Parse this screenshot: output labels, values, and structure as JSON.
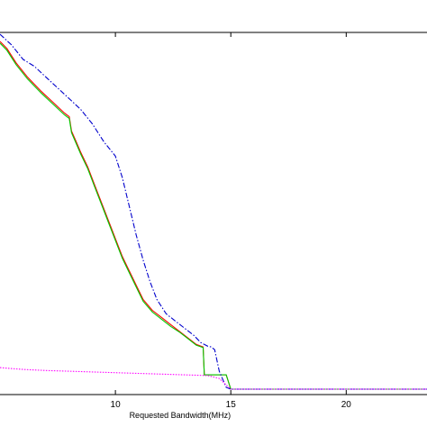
{
  "chart_data": {
    "type": "line",
    "title": "",
    "xlabel": "Requested Bandwidth(MHz)",
    "ylabel": "",
    "xlim": [
      5,
      23.5
    ],
    "ylim": [
      0,
      1
    ],
    "xticks": [
      10,
      15,
      20
    ],
    "xtick_labels": [
      "10",
      "15",
      "20"
    ],
    "grid": false,
    "legend": "none",
    "series": [
      {
        "color": "#ff0000",
        "style": "solid",
        "x": [
          5.0,
          5.3,
          5.7,
          6.2,
          6.8,
          7.3,
          7.8,
          8.0,
          8.1,
          8.3,
          8.5,
          8.8,
          9.1,
          9.4,
          9.7,
          10.0,
          10.3,
          10.6,
          10.9,
          11.2,
          11.6,
          12.0,
          12.4,
          12.8,
          13.2,
          13.5,
          13.8,
          13.85,
          14.0,
          14.2,
          14.4,
          14.6,
          14.8,
          15.0,
          16.0,
          18.0,
          20.0,
          22.0,
          23.5
        ],
        "y": [
          0.98,
          0.96,
          0.92,
          0.88,
          0.84,
          0.81,
          0.78,
          0.77,
          0.73,
          0.7,
          0.67,
          0.63,
          0.58,
          0.53,
          0.48,
          0.43,
          0.38,
          0.34,
          0.3,
          0.26,
          0.23,
          0.21,
          0.19,
          0.17,
          0.15,
          0.135,
          0.128,
          0.05,
          0.05,
          0.05,
          0.05,
          0.05,
          0.05,
          0.01,
          0.01,
          0.01,
          0.01,
          0.01,
          0.01
        ]
      },
      {
        "color": "#00cc00",
        "style": "solid",
        "x": [
          5.0,
          5.3,
          5.7,
          6.2,
          6.8,
          7.3,
          7.8,
          8.0,
          8.1,
          8.3,
          8.5,
          8.8,
          9.1,
          9.4,
          9.7,
          10.0,
          10.3,
          10.6,
          10.9,
          11.2,
          11.6,
          12.0,
          12.4,
          12.8,
          13.2,
          13.5,
          13.8,
          13.85,
          14.0,
          14.2,
          14.4,
          14.6,
          14.8,
          15.0,
          16.0,
          18.0,
          20.0,
          22.0,
          23.5
        ],
        "y": [
          0.975,
          0.955,
          0.915,
          0.875,
          0.835,
          0.805,
          0.775,
          0.765,
          0.725,
          0.695,
          0.665,
          0.625,
          0.575,
          0.525,
          0.475,
          0.425,
          0.375,
          0.335,
          0.295,
          0.255,
          0.225,
          0.205,
          0.185,
          0.168,
          0.148,
          0.133,
          0.126,
          0.05,
          0.05,
          0.05,
          0.05,
          0.05,
          0.05,
          0.01,
          0.01,
          0.01,
          0.01,
          0.01,
          0.01
        ]
      },
      {
        "color": "#0000cc",
        "style": "dashdot",
        "x": [
          5.0,
          5.5,
          6.0,
          6.5,
          7.0,
          7.5,
          8.0,
          8.5,
          9.0,
          9.5,
          10.0,
          10.3,
          10.6,
          10.9,
          11.2,
          11.5,
          11.8,
          12.2,
          12.6,
          13.0,
          13.4,
          13.7,
          14.0,
          14.15,
          14.3,
          14.5,
          14.8,
          15.0,
          16.0,
          18.0,
          20.0,
          22.0,
          23.5
        ],
        "y": [
          1.0,
          0.97,
          0.93,
          0.91,
          0.88,
          0.85,
          0.82,
          0.79,
          0.75,
          0.7,
          0.66,
          0.6,
          0.52,
          0.44,
          0.37,
          0.31,
          0.26,
          0.22,
          0.2,
          0.18,
          0.16,
          0.14,
          0.13,
          0.128,
          0.12,
          0.06,
          0.015,
          0.01,
          0.01,
          0.01,
          0.01,
          0.01,
          0.01
        ]
      },
      {
        "color": "#ff00ff",
        "style": "dotted",
        "x": [
          5.0,
          6.0,
          7.0,
          8.0,
          9.0,
          10.0,
          11.0,
          12.0,
          13.0,
          14.0,
          14.5,
          15.0,
          16.0,
          18.0,
          20.0,
          22.0,
          23.5
        ],
        "y": [
          0.07,
          0.065,
          0.062,
          0.06,
          0.058,
          0.056,
          0.054,
          0.052,
          0.05,
          0.048,
          0.04,
          0.01,
          0.01,
          0.01,
          0.01,
          0.01,
          0.01
        ]
      }
    ]
  }
}
